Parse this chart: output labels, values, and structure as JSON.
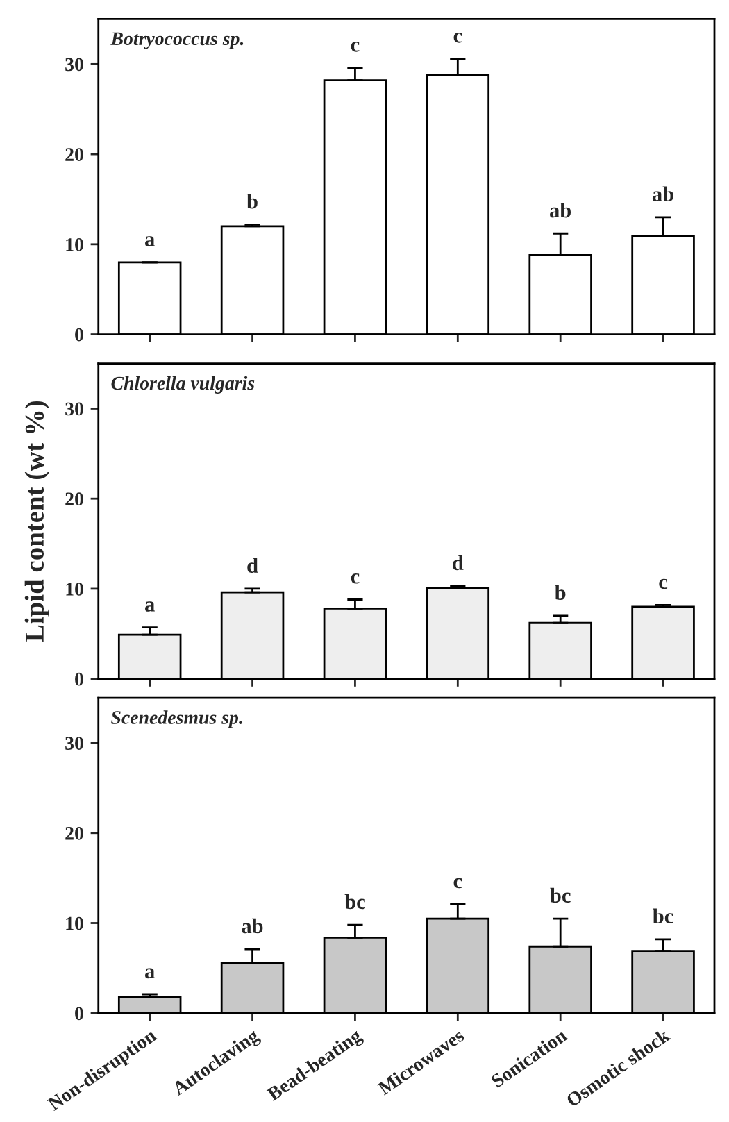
{
  "chart_data": [
    {
      "type": "bar",
      "title": "Botryococcus sp.",
      "categories": [
        null,
        null,
        null,
        null,
        null,
        null
      ],
      "values": [
        8.0,
        12.0,
        28.2,
        28.8,
        8.8,
        10.9
      ],
      "errors": [
        null,
        0.2,
        1.4,
        1.8,
        2.4,
        2.1
      ],
      "color": "#ffffff",
      "value_labels": [
        "a",
        "b",
        "c",
        "c",
        "ab",
        "ab"
      ],
      "ylim": [
        0,
        35
      ],
      "yticks": [
        0,
        10,
        20,
        30
      ],
      "tick_labels": "y",
      "grid": false,
      "legend": false
    },
    {
      "type": "bar",
      "title": "Chlorella vulgaris",
      "ylabel": "Lipid content (wt %)",
      "categories": [
        null,
        null,
        null,
        null,
        null,
        null
      ],
      "values": [
        4.9,
        9.6,
        7.8,
        10.1,
        6.2,
        8.0
      ],
      "errors": [
        0.8,
        0.4,
        1.0,
        0.2,
        0.8,
        0.2
      ],
      "color": "#eeeeee",
      "value_labels": [
        "a",
        "d",
        "c",
        "d",
        "b",
        "c"
      ],
      "ylim": [
        0,
        35
      ],
      "yticks": [
        0,
        10,
        20,
        30
      ],
      "tick_labels": "y",
      "grid": false,
      "legend": false
    },
    {
      "type": "bar",
      "title": "Scenedesmus sp.",
      "categories": [
        "Non-disruption",
        "Autoclaving",
        "Bead-beating",
        "Microwaves",
        "Sonication",
        "Osmotic shock"
      ],
      "values": [
        1.8,
        5.6,
        8.4,
        10.5,
        7.4,
        6.9
      ],
      "errors": [
        0.3,
        1.5,
        1.4,
        1.6,
        3.1,
        1.3
      ],
      "color": "#c8c8c8",
      "value_labels": [
        "a",
        "ab",
        "bc",
        "c",
        "bc",
        "bc"
      ],
      "ylim": [
        0,
        35
      ],
      "yticks": [
        0,
        10,
        20,
        30
      ],
      "grid": false,
      "legend": false
    }
  ]
}
